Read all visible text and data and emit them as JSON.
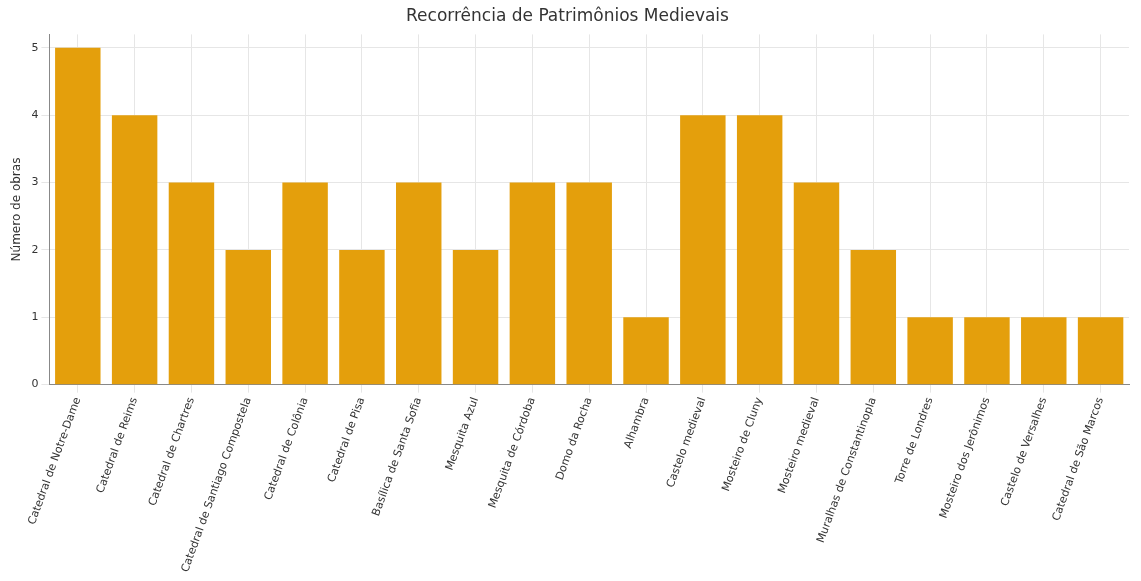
{
  "chart_data": {
    "type": "bar",
    "title": "Recorrência de Patrimônios Medievais",
    "ylabel": "Número de obras",
    "categories": [
      "Catedral de Notre-Dame",
      "Catedral de Reims",
      "Catedral de Chartres",
      "Catedral de Santiago Compostela",
      "Catedral de Colônia",
      "Catedral de Pisa",
      "Basílica de Santa Sofia",
      "Mesquita Azul",
      "Mesquita de Córdoba",
      "Domo da Rocha",
      "Alhambra",
      "Castelo medieval",
      "Mosteiro de Cluny",
      "Mosteiro medieval",
      "Muralhas de Constantinopla",
      "Torre de Londres",
      "Mosteiro dos Jerônimos",
      "Castelo de Versalhes",
      "Catedral de São Marcos"
    ],
    "values": [
      5,
      4,
      3,
      2,
      3,
      2,
      3,
      2,
      3,
      3,
      1,
      4,
      4,
      3,
      2,
      1,
      1,
      1,
      1
    ],
    "color": "#e49f0c",
    "ylim": [
      0,
      5.2
    ],
    "yticks": [
      0,
      1,
      2,
      3,
      4,
      5
    ],
    "grid": true,
    "legend": false
  }
}
